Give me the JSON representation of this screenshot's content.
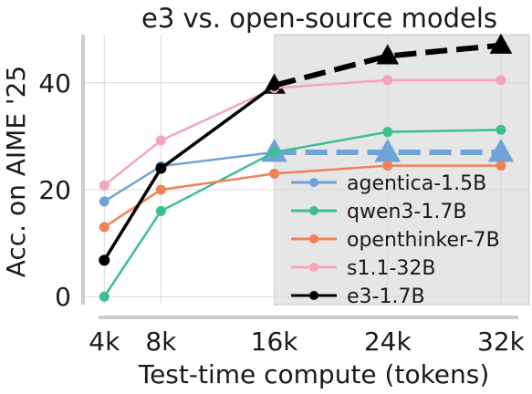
{
  "chart_data": {
    "type": "line",
    "title": "e3 vs. open-source models",
    "xlabel": "Test-time compute (tokens)",
    "ylabel": "Acc. on AIME '25",
    "x_ticks": [
      "4k",
      "8k",
      "16k",
      "24k",
      "32k"
    ],
    "x": [
      4,
      8,
      16,
      24,
      32
    ],
    "xlim": [
      2.5,
      34
    ],
    "ylim": [
      -1.5,
      49
    ],
    "y_ticks": [
      0,
      20,
      40
    ],
    "grid": true,
    "legend_position": "lower-right",
    "shaded_region": {
      "x_range": [
        16,
        34
      ],
      "color": "#e6e6e6"
    },
    "series": [
      {
        "name": "agentica-1.5B",
        "color": "#6fa3d8",
        "values": [
          17.8,
          24.4,
          27.0,
          null,
          null
        ]
      },
      {
        "name": "qwen3-1.7B",
        "color": "#3cbf8f",
        "values": [
          0.0,
          16.0,
          27.0,
          30.8,
          31.2
        ]
      },
      {
        "name": "openthinker-7B",
        "color": "#ef8258",
        "values": [
          13.0,
          20.0,
          23.0,
          24.5,
          24.5
        ]
      },
      {
        "name": "s1.1-32B",
        "color": "#f6a5b8",
        "values": [
          20.8,
          29.2,
          39.0,
          40.5,
          40.5
        ]
      },
      {
        "name": "e3-1.7B",
        "color": "#000000",
        "values": [
          6.8,
          24.0,
          39.5,
          null,
          null
        ]
      }
    ],
    "extrapolations": [
      {
        "series": "e3-1.7B",
        "x": [
          16,
          24,
          32
        ],
        "values": [
          39.5,
          45.0,
          47.0
        ],
        "color": "#000000"
      },
      {
        "series": "agentica-1.5B",
        "x": [
          16,
          24,
          32
        ],
        "values": [
          27.0,
          27.0,
          27.0
        ],
        "color": "#6fa3d8"
      }
    ]
  }
}
